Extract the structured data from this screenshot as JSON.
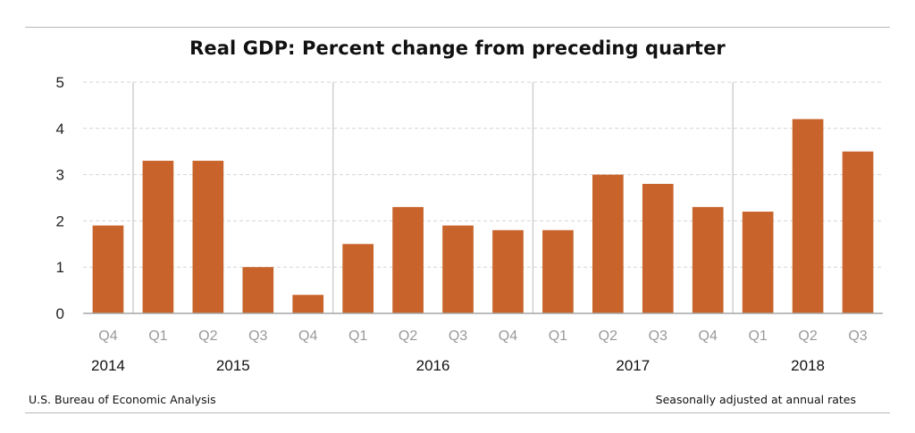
{
  "title": "Real GDP:  Percent change from preceding quarter",
  "footer": {
    "source": "U.S. Bureau of Economic Analysis",
    "note": "Seasonally adjusted at annual rates"
  },
  "chart_data": {
    "type": "bar",
    "title": "Real GDP:  Percent change from preceding quarter",
    "xlabel": "",
    "ylabel": "",
    "ylim": [
      0,
      5
    ],
    "yticks": [
      "0",
      "1",
      "2",
      "3",
      "4",
      "5"
    ],
    "grid": true,
    "bar_color": "#c8642b",
    "categories": [
      "Q4",
      "Q1",
      "Q2",
      "Q3",
      "Q4",
      "Q1",
      "Q2",
      "Q3",
      "Q4",
      "Q1",
      "Q2",
      "Q3",
      "Q4",
      "Q1",
      "Q2",
      "Q3"
    ],
    "values": [
      1.9,
      3.3,
      3.3,
      1.0,
      0.4,
      1.5,
      2.3,
      1.9,
      1.8,
      1.8,
      3.0,
      2.8,
      2.3,
      2.2,
      4.2,
      3.5
    ],
    "years": [
      {
        "label": "2014",
        "start": 0,
        "count": 1
      },
      {
        "label": "2015",
        "start": 1,
        "count": 4
      },
      {
        "label": "2016",
        "start": 5,
        "count": 4
      },
      {
        "label": "2017",
        "start": 9,
        "count": 4
      },
      {
        "label": "2018",
        "start": 13,
        "count": 3
      }
    ]
  }
}
